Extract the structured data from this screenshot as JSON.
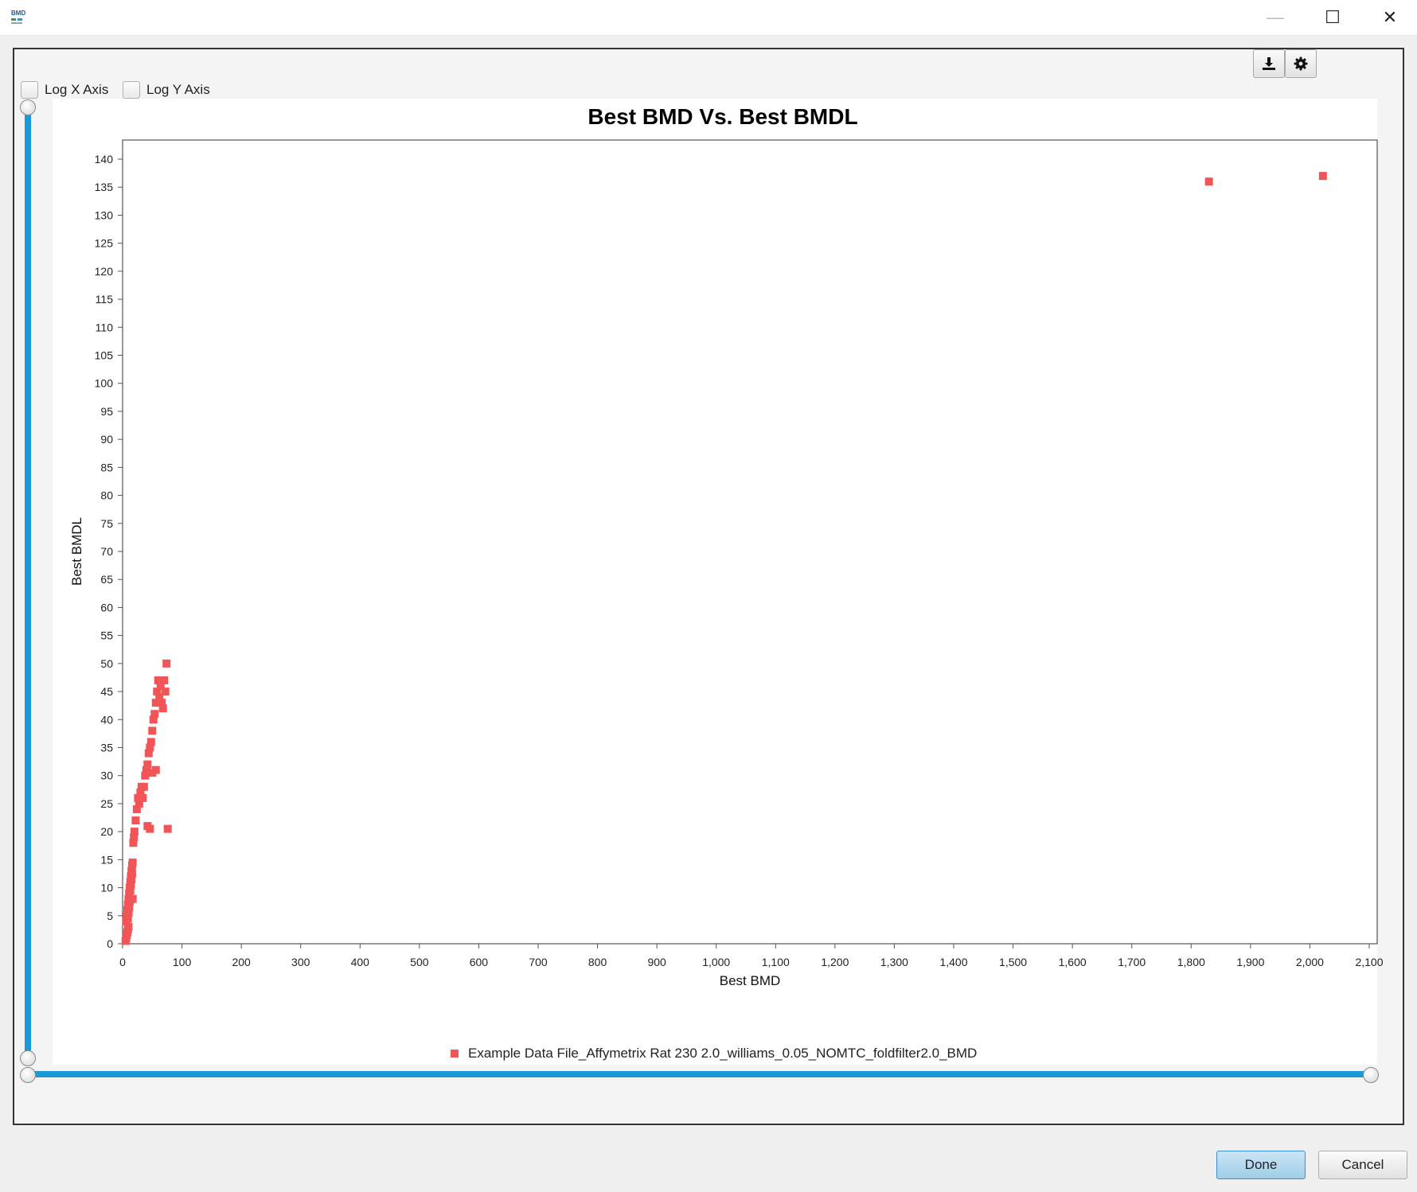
{
  "window": {
    "logo_text": "BMD",
    "minimize_glyph": "—",
    "maximize_glyph": "☐",
    "close_glyph": "✕"
  },
  "toolbar": {
    "export_icon": "download-icon",
    "settings_icon": "gear-icon"
  },
  "options": {
    "log_x_label": "Log X Axis",
    "log_y_label": "Log Y Axis",
    "log_x_checked": false,
    "log_y_checked": false
  },
  "chart_data": {
    "type": "scatter",
    "title": "Best BMD Vs. Best BMDL",
    "xlabel": "Best BMD",
    "ylabel": "Best BMDL",
    "xlim": [
      0,
      2100
    ],
    "ylim": [
      0,
      140
    ],
    "x_ticks": [
      0,
      100,
      200,
      300,
      400,
      500,
      600,
      700,
      800,
      900,
      1000,
      1100,
      1200,
      1300,
      1400,
      1500,
      1600,
      1700,
      1800,
      1900,
      2000,
      2100
    ],
    "x_tick_labels": [
      "0",
      "100",
      "200",
      "300",
      "400",
      "500",
      "600",
      "700",
      "800",
      "900",
      "1,000",
      "1,100",
      "1,200",
      "1,300",
      "1,400",
      "1,500",
      "1,600",
      "1,700",
      "1,800",
      "1,900",
      "2,000",
      "2,100"
    ],
    "y_ticks": [
      0,
      5,
      10,
      15,
      20,
      25,
      30,
      35,
      40,
      45,
      50,
      55,
      60,
      65,
      70,
      75,
      80,
      85,
      90,
      95,
      100,
      105,
      110,
      115,
      120,
      125,
      130,
      135,
      140
    ],
    "grid": false,
    "legend_position": "bottom",
    "series": [
      {
        "name": "Example Data File_Affymetrix Rat 230 2.0_williams_0.05_NOMTC_foldfilter2.0_BMD",
        "color": "#f25557",
        "marker": "square",
        "x": [
          5,
          6,
          7,
          8,
          9,
          10,
          6,
          7,
          8,
          9,
          10,
          11,
          12,
          13,
          14,
          15,
          16,
          17,
          9,
          10,
          11,
          12,
          13,
          14,
          15,
          16,
          17,
          18,
          19,
          20,
          22,
          24,
          26,
          28,
          30,
          32,
          34,
          36,
          38,
          40,
          42,
          44,
          46,
          48,
          50,
          52,
          54,
          56,
          58,
          60,
          62,
          64,
          66,
          68,
          70,
          72,
          74,
          76,
          42,
          46,
          50,
          56,
          1830,
          2022
        ],
        "y": [
          0.5,
          1,
          1.5,
          2,
          2.5,
          3,
          4,
          5,
          6,
          7,
          8,
          9,
          10,
          11,
          12,
          13,
          14,
          14.5,
          4.5,
          5.5,
          6.5,
          7.5,
          9.5,
          10.5,
          11.5,
          12.5,
          8,
          18,
          19,
          20,
          22,
          24,
          26,
          25,
          27,
          28,
          26,
          28,
          30,
          31,
          32,
          34,
          35,
          36,
          38,
          40,
          41,
          43,
          45,
          47,
          44,
          46,
          43,
          42,
          47,
          45,
          50,
          20.5,
          21,
          20.5,
          30.5,
          31,
          136,
          137
        ]
      }
    ]
  },
  "footer": {
    "done_label": "Done",
    "cancel_label": "Cancel"
  }
}
